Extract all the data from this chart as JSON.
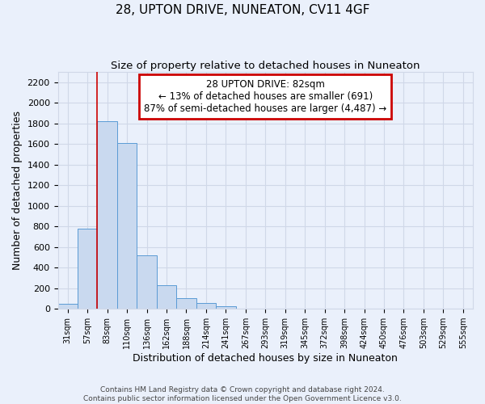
{
  "title": "28, UPTON DRIVE, NUNEATON, CV11 4GF",
  "subtitle": "Size of property relative to detached houses in Nuneaton",
  "xlabel": "Distribution of detached houses by size in Nuneaton",
  "ylabel": "Number of detached properties",
  "bar_labels": [
    "31sqm",
    "57sqm",
    "83sqm",
    "110sqm",
    "136sqm",
    "162sqm",
    "188sqm",
    "214sqm",
    "241sqm",
    "267sqm",
    "293sqm",
    "319sqm",
    "345sqm",
    "372sqm",
    "398sqm",
    "424sqm",
    "450sqm",
    "476sqm",
    "503sqm",
    "529sqm",
    "555sqm"
  ],
  "bar_values": [
    50,
    780,
    1820,
    1610,
    520,
    230,
    105,
    55,
    28,
    0,
    0,
    0,
    0,
    0,
    0,
    0,
    0,
    0,
    0,
    0,
    0
  ],
  "bar_color": "#c9d9ef",
  "bar_edge_color": "#5b9bd5",
  "red_line_index": 2,
  "annotation_line1": "28 UPTON DRIVE: 82sqm",
  "annotation_line2": "← 13% of detached houses are smaller (691)",
  "annotation_line3": "87% of semi-detached houses are larger (4,487) →",
  "annotation_box_color": "#ffffff",
  "annotation_box_edge_color": "#cc0000",
  "ylim": [
    0,
    2300
  ],
  "yticks": [
    0,
    200,
    400,
    600,
    800,
    1000,
    1200,
    1400,
    1600,
    1800,
    2000,
    2200
  ],
  "grid_color": "#d0d8e8",
  "footer_line1": "Contains HM Land Registry data © Crown copyright and database right 2024.",
  "footer_line2": "Contains public sector information licensed under the Open Government Licence v3.0.",
  "background_color": "#eaf0fb",
  "plot_background_color": "#eaf0fb",
  "title_fontsize": 11,
  "subtitle_fontsize": 9.5
}
